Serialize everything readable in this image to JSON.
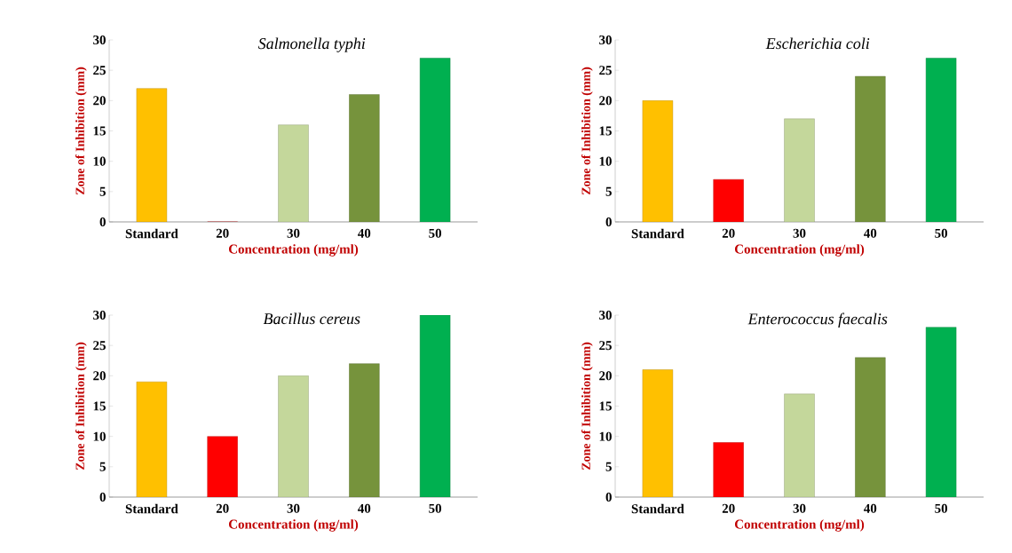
{
  "chart_data": [
    {
      "type": "bar",
      "title": "Salmonella typhi",
      "xlabel": "Concentration (mg/ml)",
      "ylabel": "Zone of Inhibition (mm)",
      "categories": [
        "Standard",
        "20",
        "30",
        "40",
        "50"
      ],
      "values": [
        22,
        0,
        16,
        21,
        27
      ],
      "colors": [
        "#ffc000",
        "#ff0000",
        "#c4d79b",
        "#76933c",
        "#00b050"
      ],
      "ylim": [
        0,
        30
      ],
      "yticks": [
        0,
        5,
        10,
        15,
        20,
        25,
        30
      ]
    },
    {
      "type": "bar",
      "title": "Escherichia coli",
      "xlabel": "Concentration (mg/ml)",
      "ylabel": "Zone of Inhibition (mm)",
      "categories": [
        "Standard",
        "20",
        "30",
        "40",
        "50"
      ],
      "values": [
        20,
        7,
        17,
        24,
        27
      ],
      "colors": [
        "#ffc000",
        "#ff0000",
        "#c4d79b",
        "#76933c",
        "#00b050"
      ],
      "ylim": [
        0,
        30
      ],
      "yticks": [
        0,
        5,
        10,
        15,
        20,
        25,
        30
      ]
    },
    {
      "type": "bar",
      "title": "Bacillus cereus",
      "xlabel": "Concentration (mg/ml)",
      "ylabel": "Zone of Inhibition (mm)",
      "categories": [
        "Standard",
        "20",
        "30",
        "40",
        "50"
      ],
      "values": [
        19,
        10,
        20,
        22,
        30
      ],
      "colors": [
        "#ffc000",
        "#ff0000",
        "#c4d79b",
        "#76933c",
        "#00b050"
      ],
      "ylim": [
        0,
        30
      ],
      "yticks": [
        0,
        5,
        10,
        15,
        20,
        25,
        30
      ]
    },
    {
      "type": "bar",
      "title": "Enterococcus faecalis",
      "xlabel": "Concentration (mg/ml)",
      "ylabel": "Zone of Inhibition (mm)",
      "categories": [
        "Standard",
        "20",
        "30",
        "40",
        "50"
      ],
      "values": [
        21,
        9,
        17,
        23,
        28
      ],
      "colors": [
        "#ffc000",
        "#ff0000",
        "#c4d79b",
        "#76933c",
        "#00b050"
      ],
      "ylim": [
        0,
        30
      ],
      "yticks": [
        0,
        5,
        10,
        15,
        20,
        25,
        30
      ]
    }
  ]
}
